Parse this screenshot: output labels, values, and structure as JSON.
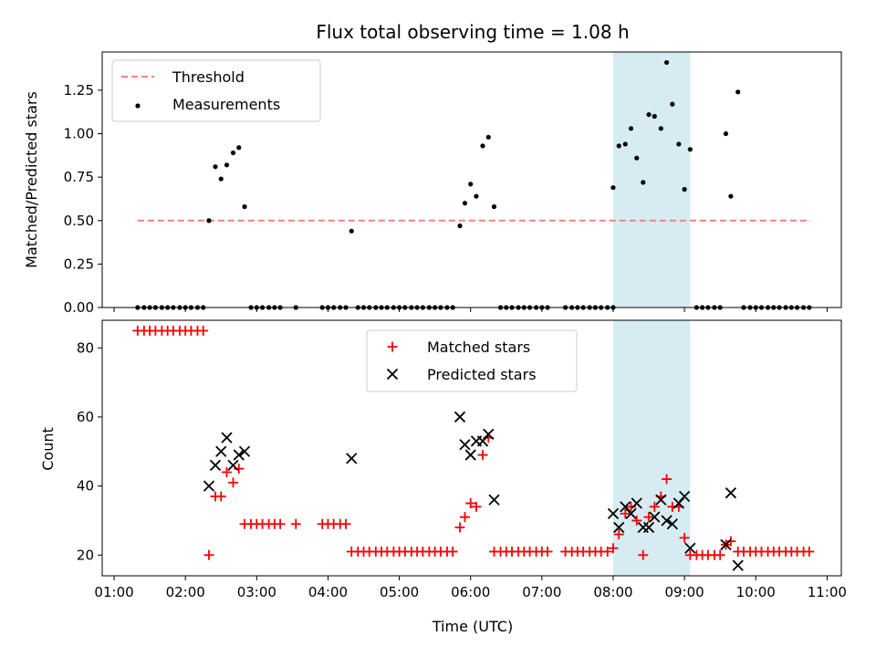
{
  "chart_data": [
    {
      "type": "scatter",
      "title": "Flux total observing time = 1.08 h",
      "ylabel": "Matched/Predicted stars",
      "ylim": [
        0,
        1.47
      ],
      "yticks": [
        0.0,
        0.25,
        0.5,
        0.75,
        1.0,
        1.25
      ],
      "xlim_hours": [
        0.833,
        11.2
      ],
      "highlight_band_hours": [
        8.0,
        9.08
      ],
      "grid": false,
      "legend_position": "top-left",
      "legend": [
        {
          "label": "Threshold",
          "style": "dashed-line",
          "color": "#ff7f7f"
        },
        {
          "label": "Measurements",
          "style": "dot",
          "color": "#000000"
        }
      ],
      "threshold": {
        "value": 0.5,
        "x_start": 1.33,
        "x_end": 10.77
      },
      "series": [
        {
          "style": "dot",
          "points": [
            [
              1.33,
              0
            ],
            [
              1.42,
              0
            ],
            [
              1.5,
              0
            ],
            [
              1.58,
              0
            ],
            [
              1.67,
              0
            ],
            [
              1.75,
              0
            ],
            [
              1.83,
              0
            ],
            [
              1.92,
              0
            ],
            [
              2.0,
              0
            ],
            [
              2.08,
              0
            ],
            [
              2.17,
              0
            ],
            [
              2.25,
              0
            ],
            [
              2.33,
              0.5
            ],
            [
              2.42,
              0.81
            ],
            [
              2.5,
              0.74
            ],
            [
              2.58,
              0.82
            ],
            [
              2.67,
              0.89
            ],
            [
              2.75,
              0.92
            ],
            [
              2.83,
              0.58
            ],
            [
              2.92,
              0
            ],
            [
              3.0,
              0
            ],
            [
              3.08,
              0
            ],
            [
              3.17,
              0
            ],
            [
              3.25,
              0
            ],
            [
              3.33,
              0
            ],
            [
              3.55,
              0
            ],
            [
              3.92,
              0
            ],
            [
              4.0,
              0
            ],
            [
              4.08,
              0
            ],
            [
              4.17,
              0
            ],
            [
              4.25,
              0
            ],
            [
              4.33,
              0.44
            ],
            [
              4.42,
              0
            ],
            [
              4.5,
              0
            ],
            [
              4.58,
              0
            ],
            [
              4.67,
              0
            ],
            [
              4.75,
              0
            ],
            [
              4.83,
              0
            ],
            [
              4.92,
              0
            ],
            [
              5.0,
              0
            ],
            [
              5.08,
              0
            ],
            [
              5.17,
              0
            ],
            [
              5.25,
              0
            ],
            [
              5.33,
              0
            ],
            [
              5.42,
              0
            ],
            [
              5.5,
              0
            ],
            [
              5.58,
              0
            ],
            [
              5.67,
              0
            ],
            [
              5.75,
              0
            ],
            [
              5.85,
              0.47
            ],
            [
              5.92,
              0.6
            ],
            [
              6.0,
              0.71
            ],
            [
              6.08,
              0.64
            ],
            [
              6.17,
              0.93
            ],
            [
              6.25,
              0.98
            ],
            [
              6.33,
              0.58
            ],
            [
              6.42,
              0
            ],
            [
              6.5,
              0
            ],
            [
              6.58,
              0
            ],
            [
              6.67,
              0
            ],
            [
              6.75,
              0
            ],
            [
              6.83,
              0
            ],
            [
              6.92,
              0
            ],
            [
              7.0,
              0
            ],
            [
              7.08,
              0
            ],
            [
              7.33,
              0
            ],
            [
              7.42,
              0
            ],
            [
              7.5,
              0
            ],
            [
              7.58,
              0
            ],
            [
              7.67,
              0
            ],
            [
              7.75,
              0
            ],
            [
              7.83,
              0
            ],
            [
              7.92,
              0
            ],
            [
              8.0,
              0
            ],
            [
              8.0,
              0.69
            ],
            [
              8.08,
              0.93
            ],
            [
              8.17,
              0.94
            ],
            [
              8.25,
              1.03
            ],
            [
              8.33,
              0.86
            ],
            [
              8.42,
              0.72
            ],
            [
              8.5,
              1.11
            ],
            [
              8.58,
              1.1
            ],
            [
              8.67,
              1.03
            ],
            [
              8.75,
              1.41
            ],
            [
              8.83,
              1.17
            ],
            [
              8.92,
              0.94
            ],
            [
              9.0,
              0.68
            ],
            [
              9.08,
              0.91
            ],
            [
              9.17,
              0
            ],
            [
              9.25,
              0
            ],
            [
              9.33,
              0
            ],
            [
              9.42,
              0
            ],
            [
              9.5,
              0
            ],
            [
              9.58,
              1.0
            ],
            [
              9.65,
              0.64
            ],
            [
              9.75,
              1.24
            ],
            [
              9.83,
              0
            ],
            [
              9.92,
              0
            ],
            [
              10.0,
              0
            ],
            [
              10.08,
              0
            ],
            [
              10.17,
              0
            ],
            [
              10.25,
              0
            ],
            [
              10.33,
              0
            ],
            [
              10.42,
              0
            ],
            [
              10.5,
              0
            ],
            [
              10.58,
              0
            ],
            [
              10.67,
              0
            ],
            [
              10.75,
              0
            ]
          ]
        }
      ]
    },
    {
      "type": "scatter",
      "xlabel": "Time (UTC)",
      "ylabel": "Count",
      "ylim": [
        14,
        88
      ],
      "yticks": [
        20,
        40,
        60,
        80
      ],
      "xlim_hours": [
        0.833,
        11.2
      ],
      "xticks": [
        "01:00",
        "02:00",
        "03:00",
        "04:00",
        "05:00",
        "06:00",
        "07:00",
        "08:00",
        "09:00",
        "10:00",
        "11:00"
      ],
      "highlight_band_hours": [
        8.0,
        9.08
      ],
      "grid": false,
      "legend_position": "top-center",
      "legend": [
        {
          "label": "Matched stars",
          "style": "plus",
          "color": "#ff0000"
        },
        {
          "label": "Predicted stars",
          "style": "x",
          "color": "#000000"
        }
      ],
      "series": [
        {
          "style": "plus",
          "points": [
            [
              1.33,
              85
            ],
            [
              1.42,
              85
            ],
            [
              1.5,
              85
            ],
            [
              1.58,
              85
            ],
            [
              1.67,
              85
            ],
            [
              1.75,
              85
            ],
            [
              1.83,
              85
            ],
            [
              1.92,
              85
            ],
            [
              2.0,
              85
            ],
            [
              2.08,
              85
            ],
            [
              2.17,
              85
            ],
            [
              2.25,
              85
            ],
            [
              2.33,
              20
            ],
            [
              2.42,
              37
            ],
            [
              2.5,
              37
            ],
            [
              2.58,
              44
            ],
            [
              2.67,
              41
            ],
            [
              2.75,
              45
            ],
            [
              2.83,
              29
            ],
            [
              2.92,
              29
            ],
            [
              3.0,
              29
            ],
            [
              3.08,
              29
            ],
            [
              3.17,
              29
            ],
            [
              3.25,
              29
            ],
            [
              3.33,
              29
            ],
            [
              3.55,
              29
            ],
            [
              3.92,
              29
            ],
            [
              4.0,
              29
            ],
            [
              4.08,
              29
            ],
            [
              4.17,
              29
            ],
            [
              4.25,
              29
            ],
            [
              4.33,
              21
            ],
            [
              4.42,
              21
            ],
            [
              4.5,
              21
            ],
            [
              4.58,
              21
            ],
            [
              4.67,
              21
            ],
            [
              4.75,
              21
            ],
            [
              4.83,
              21
            ],
            [
              4.92,
              21
            ],
            [
              5.0,
              21
            ],
            [
              5.08,
              21
            ],
            [
              5.17,
              21
            ],
            [
              5.25,
              21
            ],
            [
              5.33,
              21
            ],
            [
              5.42,
              21
            ],
            [
              5.5,
              21
            ],
            [
              5.58,
              21
            ],
            [
              5.67,
              21
            ],
            [
              5.75,
              21
            ],
            [
              5.85,
              28
            ],
            [
              5.92,
              31
            ],
            [
              6.0,
              35
            ],
            [
              6.08,
              34
            ],
            [
              6.17,
              49
            ],
            [
              6.25,
              54
            ],
            [
              6.33,
              21
            ],
            [
              6.42,
              21
            ],
            [
              6.5,
              21
            ],
            [
              6.58,
              21
            ],
            [
              6.67,
              21
            ],
            [
              6.75,
              21
            ],
            [
              6.83,
              21
            ],
            [
              6.92,
              21
            ],
            [
              7.0,
              21
            ],
            [
              7.08,
              21
            ],
            [
              7.33,
              21
            ],
            [
              7.42,
              21
            ],
            [
              7.5,
              21
            ],
            [
              7.58,
              21
            ],
            [
              7.67,
              21
            ],
            [
              7.75,
              21
            ],
            [
              7.83,
              21
            ],
            [
              7.92,
              21
            ],
            [
              8.0,
              22
            ],
            [
              8.08,
              26
            ],
            [
              8.17,
              32
            ],
            [
              8.25,
              34
            ],
            [
              8.33,
              30
            ],
            [
              8.42,
              20
            ],
            [
              8.5,
              31
            ],
            [
              8.58,
              34
            ],
            [
              8.67,
              37
            ],
            [
              8.75,
              42
            ],
            [
              8.83,
              34
            ],
            [
              8.92,
              34
            ],
            [
              9.0,
              25
            ],
            [
              9.08,
              20
            ],
            [
              9.17,
              20
            ],
            [
              9.25,
              20
            ],
            [
              9.33,
              20
            ],
            [
              9.42,
              20
            ],
            [
              9.5,
              20
            ],
            [
              9.58,
              23
            ],
            [
              9.65,
              24
            ],
            [
              9.75,
              21
            ],
            [
              9.83,
              21
            ],
            [
              9.92,
              21
            ],
            [
              10.0,
              21
            ],
            [
              10.08,
              21
            ],
            [
              10.17,
              21
            ],
            [
              10.25,
              21
            ],
            [
              10.33,
              21
            ],
            [
              10.42,
              21
            ],
            [
              10.5,
              21
            ],
            [
              10.58,
              21
            ],
            [
              10.67,
              21
            ],
            [
              10.75,
              21
            ]
          ]
        },
        {
          "style": "x",
          "points": [
            [
              2.33,
              40
            ],
            [
              2.42,
              46
            ],
            [
              2.5,
              50
            ],
            [
              2.58,
              54
            ],
            [
              2.67,
              46
            ],
            [
              2.75,
              49
            ],
            [
              2.83,
              50
            ],
            [
              4.33,
              48
            ],
            [
              5.85,
              60
            ],
            [
              5.92,
              52
            ],
            [
              6.0,
              49
            ],
            [
              6.08,
              53
            ],
            [
              6.17,
              53
            ],
            [
              6.25,
              55
            ],
            [
              6.33,
              36
            ],
            [
              8.0,
              32
            ],
            [
              8.08,
              28
            ],
            [
              8.17,
              34
            ],
            [
              8.25,
              32
            ],
            [
              8.33,
              35
            ],
            [
              8.42,
              28
            ],
            [
              8.5,
              28
            ],
            [
              8.58,
              31
            ],
            [
              8.67,
              36
            ],
            [
              8.75,
              30
            ],
            [
              8.83,
              29
            ],
            [
              8.92,
              35
            ],
            [
              9.0,
              37
            ],
            [
              9.08,
              22
            ],
            [
              9.58,
              23
            ],
            [
              9.65,
              38
            ],
            [
              9.75,
              17
            ]
          ]
        }
      ]
    }
  ]
}
